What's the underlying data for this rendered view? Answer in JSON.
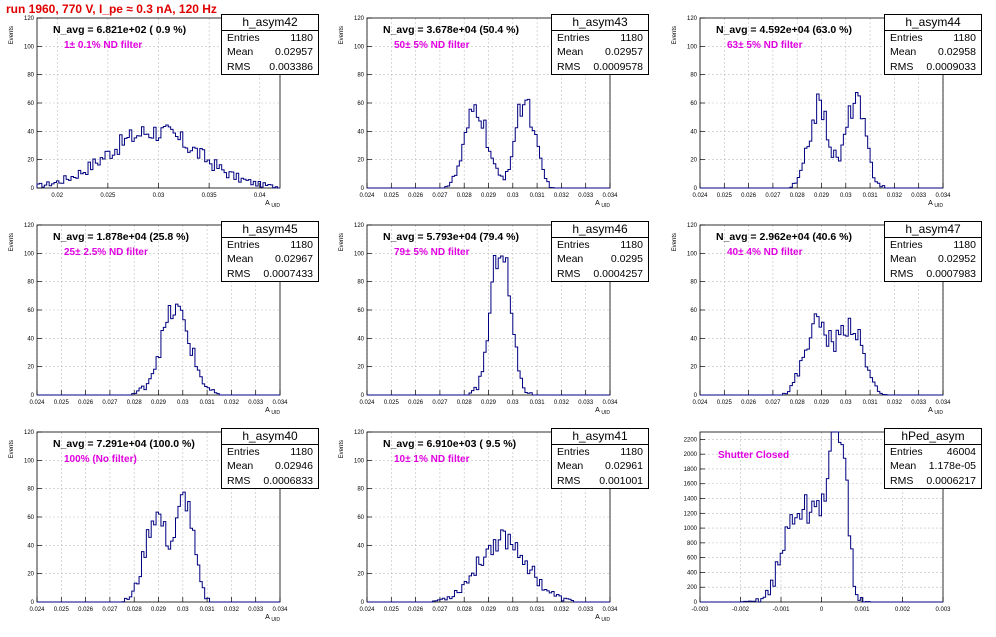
{
  "title": "run 1960,   770 V, I_pe ≈ 0.3 nA, 120 Hz",
  "colors": {
    "title": "#e00000",
    "hist": "#000080",
    "grid": "#bfbfbf",
    "filter_text": "#e000e0"
  },
  "chart_data": [
    {
      "type": "bar",
      "stats_name": "h_asym42",
      "navg": "N_avg = 6.821e+02 ( 0.9 %)",
      "filter": "1± 0.1% ND filter",
      "entries_label": "Entries",
      "entries": "1180",
      "mean_label": "Mean",
      "mean": "0.02957",
      "rms_label": "RMS",
      "rms": "0.003386",
      "ylabel": "Events",
      "xlabel": "A_UID",
      "xlim": [
        0.018,
        0.042
      ],
      "ylim": [
        0,
        120
      ],
      "xticks": [
        0.02,
        0.025,
        0.03,
        0.035,
        0.04
      ],
      "xtick_labels": [
        "0.02",
        "0.025",
        "0.03",
        "0.035",
        "0.04"
      ],
      "yticks": [
        0,
        20,
        40,
        60,
        80,
        100,
        120
      ],
      "peaks": [
        [
          0.0295,
          0.0045,
          40
        ]
      ],
      "grid": true
    },
    {
      "type": "bar",
      "stats_name": "h_asym43",
      "navg": "N_avg = 3.678e+04 (50.4 %)",
      "filter": "50± 5% ND filter",
      "entries_label": "Entries",
      "entries": "1180",
      "mean_label": "Mean",
      "mean": "0.02957",
      "rms_label": "RMS",
      "rms": "0.0009578",
      "ylabel": "Events",
      "xlabel": "A_UID",
      "xlim": [
        0.024,
        0.034
      ],
      "ylim": [
        0,
        120
      ],
      "xticks": [
        0.024,
        0.025,
        0.026,
        0.027,
        0.028,
        0.029,
        0.03,
        0.031,
        0.032,
        0.033,
        0.034
      ],
      "xtick_labels": [
        "0.024",
        "0.025",
        "0.026",
        "0.027",
        "0.028",
        "0.029",
        "0.03",
        "0.031",
        "0.032",
        "0.033",
        "0.034"
      ],
      "yticks": [
        0,
        20,
        40,
        60,
        80,
        100,
        120
      ],
      "peaks": [
        [
          0.0285,
          0.00045,
          56
        ],
        [
          0.0305,
          0.0004,
          62
        ]
      ],
      "grid": true
    },
    {
      "type": "bar",
      "stats_name": "h_asym44",
      "navg": "N_avg = 4.592e+04 (63.0 %)",
      "filter": "63± 5% ND filter",
      "entries_label": "Entries",
      "entries": "1180",
      "mean_label": "Mean",
      "mean": "0.02958",
      "rms_label": "RMS",
      "rms": "0.0009033",
      "ylabel": "Events",
      "xlabel": "A_UID",
      "xlim": [
        0.024,
        0.034
      ],
      "ylim": [
        0,
        120
      ],
      "xticks": [
        0.024,
        0.025,
        0.026,
        0.027,
        0.028,
        0.029,
        0.03,
        0.031,
        0.032,
        0.033,
        0.034
      ],
      "xtick_labels": [
        "0.024",
        "0.025",
        "0.026",
        "0.027",
        "0.028",
        "0.029",
        "0.03",
        "0.031",
        "0.032",
        "0.033",
        "0.034"
      ],
      "yticks": [
        0,
        20,
        40,
        60,
        80,
        100,
        120
      ],
      "peaks": [
        [
          0.0289,
          0.0004,
          58
        ],
        [
          0.0304,
          0.0004,
          62
        ]
      ],
      "grid": true
    },
    {
      "type": "bar",
      "stats_name": "h_asym45",
      "navg": "N_avg = 1.878e+04 (25.8 %)",
      "filter": "25± 2.5% ND filter",
      "entries_label": "Entries",
      "entries": "1180",
      "mean_label": "Mean",
      "mean": "0.02967",
      "rms_label": "RMS",
      "rms": "0.0007433",
      "ylabel": "Events",
      "xlabel": "A_UID",
      "xlim": [
        0.024,
        0.034
      ],
      "ylim": [
        0,
        120
      ],
      "xticks": [
        0.024,
        0.025,
        0.026,
        0.027,
        0.028,
        0.029,
        0.03,
        0.031,
        0.032,
        0.033,
        0.034
      ],
      "xtick_labels": [
        "0.024",
        "0.025",
        "0.026",
        "0.027",
        "0.028",
        "0.029",
        "0.03",
        "0.031",
        "0.032",
        "0.033",
        "0.034"
      ],
      "yticks": [
        0,
        20,
        40,
        60,
        80,
        100,
        120
      ],
      "peaks": [
        [
          0.0297,
          0.0006,
          60
        ]
      ],
      "grid": true
    },
    {
      "type": "bar",
      "stats_name": "h_asym46",
      "navg": "N_avg = 5.793e+04 (79.4 %)",
      "filter": "79± 5% ND filter",
      "entries_label": "Entries",
      "entries": "1180",
      "mean_label": "Mean",
      "mean": "0.0295",
      "rms_label": "RMS",
      "rms": "0.0004257",
      "ylabel": "Events",
      "xlabel": "A_UID",
      "xlim": [
        0.024,
        0.034
      ],
      "ylim": [
        0,
        120
      ],
      "xticks": [
        0.024,
        0.025,
        0.026,
        0.027,
        0.028,
        0.029,
        0.03,
        0.031,
        0.032,
        0.033,
        0.034
      ],
      "xtick_labels": [
        "0.024",
        "0.025",
        "0.026",
        "0.027",
        "0.028",
        "0.029",
        "0.03",
        "0.031",
        "0.032",
        "0.033",
        "0.034"
      ],
      "yticks": [
        0,
        20,
        40,
        60,
        80,
        100,
        120
      ],
      "peaks": [
        [
          0.0295,
          0.0004,
          108
        ]
      ],
      "grid": true
    },
    {
      "type": "bar",
      "stats_name": "h_asym47",
      "navg": "N_avg = 2.962e+04 (40.6 %)",
      "filter": "40± 4% ND filter",
      "entries_label": "Entries",
      "entries": "1180",
      "mean_label": "Mean",
      "mean": "0.02952",
      "rms_label": "RMS",
      "rms": "0.0007983",
      "ylabel": "Events",
      "xlabel": "A_UID",
      "xlim": [
        0.024,
        0.034
      ],
      "ylim": [
        0,
        120
      ],
      "xticks": [
        0.024,
        0.025,
        0.026,
        0.027,
        0.028,
        0.029,
        0.03,
        0.031,
        0.032,
        0.033,
        0.034
      ],
      "xtick_labels": [
        "0.024",
        "0.025",
        "0.026",
        "0.027",
        "0.028",
        "0.029",
        "0.03",
        "0.031",
        "0.032",
        "0.033",
        "0.034"
      ],
      "yticks": [
        0,
        20,
        40,
        60,
        80,
        100,
        120
      ],
      "peaks": [
        [
          0.0288,
          0.0005,
          50
        ],
        [
          0.0302,
          0.0005,
          50
        ]
      ],
      "grid": true
    },
    {
      "type": "bar",
      "stats_name": "h_asym40",
      "navg": "N_avg = 7.291e+04 (100.0 %)",
      "filter": "100% (No filter)",
      "entries_label": "Entries",
      "entries": "1180",
      "mean_label": "Mean",
      "mean": "0.02946",
      "rms_label": "RMS",
      "rms": "0.0006833",
      "ylabel": "Events",
      "xlabel": "A_UID",
      "xlim": [
        0.024,
        0.034
      ],
      "ylim": [
        0,
        120
      ],
      "xticks": [
        0.024,
        0.025,
        0.026,
        0.027,
        0.028,
        0.029,
        0.03,
        0.031,
        0.032,
        0.033,
        0.034
      ],
      "xtick_labels": [
        "0.024",
        "0.025",
        "0.026",
        "0.027",
        "0.028",
        "0.029",
        "0.03",
        "0.031",
        "0.032",
        "0.033",
        "0.034"
      ],
      "yticks": [
        0,
        20,
        40,
        60,
        80,
        100,
        120
      ],
      "peaks": [
        [
          0.0289,
          0.00045,
          62
        ],
        [
          0.0301,
          0.00035,
          72
        ]
      ],
      "grid": true
    },
    {
      "type": "bar",
      "stats_name": "h_asym41",
      "navg": "N_avg = 6.910e+03 ( 9.5 %)",
      "filter": "10± 1% ND filter",
      "entries_label": "Entries",
      "entries": "1180",
      "mean_label": "Mean",
      "mean": "0.02961",
      "rms_label": "RMS",
      "rms": "0.001001",
      "ylabel": "Events",
      "xlabel": "A_UID",
      "xlim": [
        0.024,
        0.034
      ],
      "ylim": [
        0,
        120
      ],
      "xticks": [
        0.024,
        0.025,
        0.026,
        0.027,
        0.028,
        0.029,
        0.03,
        0.031,
        0.032,
        0.033,
        0.034
      ],
      "xtick_labels": [
        "0.024",
        "0.025",
        "0.026",
        "0.027",
        "0.028",
        "0.029",
        "0.03",
        "0.031",
        "0.032",
        "0.033",
        "0.034"
      ],
      "yticks": [
        0,
        20,
        40,
        60,
        80,
        100,
        120
      ],
      "peaks": [
        [
          0.0296,
          0.001,
          45
        ]
      ],
      "grid": true
    },
    {
      "type": "bar",
      "stats_name": "hPed_asym",
      "navg": "",
      "filter": "Shutter Closed",
      "entries_label": "Entries",
      "entries": "46004",
      "mean_label": "Mean",
      "mean": "1.178e-05",
      "rms_label": "RMS",
      "rms": "0.0006217",
      "ylabel": "",
      "xlabel": "",
      "xlim": [
        -0.003,
        0.003
      ],
      "ylim": [
        0,
        2300
      ],
      "xticks": [
        -0.003,
        -0.002,
        -0.001,
        0,
        0.001,
        0.002,
        0.003
      ],
      "xtick_labels": [
        "-0.003",
        "-0.002",
        "-0.001",
        "0",
        "0.001",
        "0.002",
        "0.003"
      ],
      "yticks": [
        0,
        200,
        400,
        600,
        800,
        1000,
        1200,
        1400,
        1600,
        1800,
        2000,
        2200
      ],
      "peaks": [
        [
          -0.0006,
          0.00035,
          1200
        ],
        [
          5e-05,
          0.00025,
          1050
        ],
        [
          0.00045,
          0.00018,
          2200
        ]
      ],
      "grid": true
    }
  ]
}
